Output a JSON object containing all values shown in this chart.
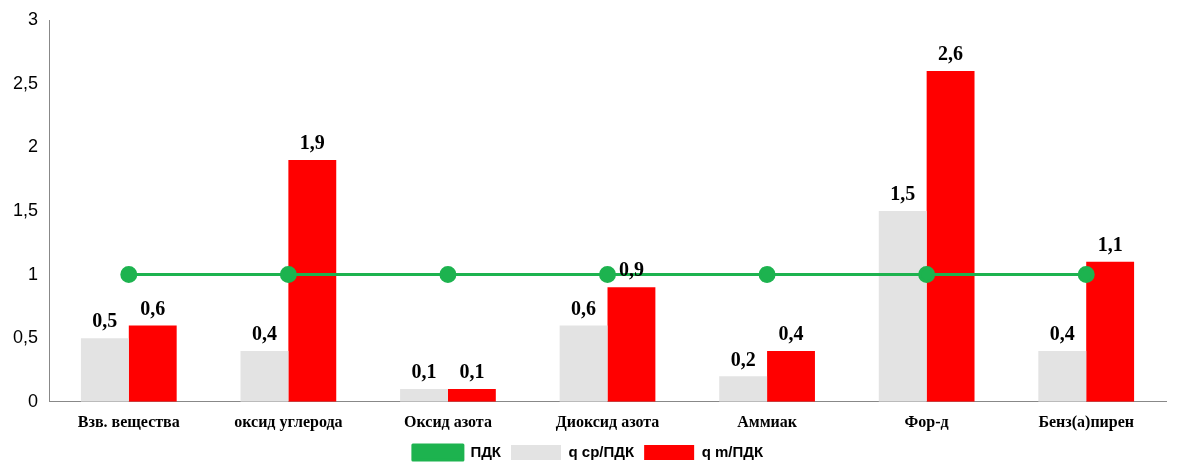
{
  "chart_data": {
    "type": "bar",
    "categories": [
      "Взв. вещества",
      "оксид углерода",
      "Оксид азота",
      "Диоксид азота",
      "Аммиак",
      "Фор-д",
      "Бенз(а)пирен"
    ],
    "series": [
      {
        "name": "q ср/ПДК",
        "color": "#e3e3e3",
        "values": [
          0.5,
          0.4,
          0.1,
          0.6,
          0.2,
          1.5,
          0.4
        ],
        "value_labels": [
          "0,5",
          "0,4",
          "0,1",
          "0,6",
          "0,2",
          "1,5",
          "0,4"
        ]
      },
      {
        "name": "q m/ПДК",
        "color": "#ff0000",
        "values": [
          0.6,
          1.9,
          0.1,
          0.9,
          0.4,
          2.6,
          1.1
        ],
        "value_labels": [
          "0,6",
          "1,9",
          "0,1",
          "0,9",
          "0,4",
          "2,6",
          "1,1"
        ]
      },
      {
        "name": "ПДК",
        "type": "line",
        "color": "#1db34f",
        "values": [
          1,
          1,
          1,
          1,
          1,
          1,
          1
        ],
        "marker": "circle",
        "line_style": "solid"
      }
    ],
    "ylim": [
      0,
      3
    ],
    "yticks": [
      0,
      {
        "value": 0.5,
        "label": "0,5"
      },
      1,
      {
        "value": 1.5,
        "label": "1,5"
      },
      2,
      {
        "value": 2.5,
        "label": "2,5"
      },
      3
    ],
    "grid": false,
    "legend": "bottom"
  }
}
